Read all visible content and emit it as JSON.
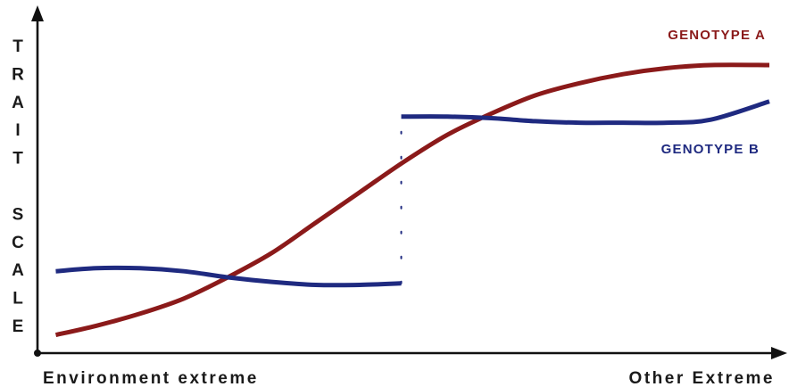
{
  "chart_data": {
    "type": "line",
    "xlabel_left": "Environment extreme",
    "xlabel_right": "Other Extreme",
    "ylabel": "TRAIT SCALE",
    "ylabel_letters": [
      "T",
      "R",
      "A",
      "I",
      "T",
      "",
      "S",
      "C",
      "A",
      "L",
      "E"
    ],
    "xlim": [
      0,
      100
    ],
    "ylim": [
      0,
      100
    ],
    "grid": false,
    "series": [
      {
        "name": "GENOTYPE A",
        "color": "#8b1a1a",
        "x": [
          2.5,
          8,
          14,
          20,
          26,
          32,
          38,
          44,
          50,
          56,
          62,
          68,
          74,
          80,
          86,
          92,
          100
        ],
        "y": [
          6,
          9,
          13,
          18,
          25,
          33,
          43,
          53,
          63,
          72,
          79,
          85,
          89,
          92,
          94,
          95,
          95
        ]
      },
      {
        "name": "GENOTYPE B",
        "color": "#1f2a80",
        "x": [
          2.5,
          8,
          14,
          20,
          26,
          32,
          38,
          44,
          49.7,
          49.7,
          56,
          62,
          68,
          74,
          80,
          86,
          92,
          100
        ],
        "y": [
          27,
          28,
          28,
          27,
          25,
          23.5,
          22.5,
          22.5,
          23,
          78,
          78,
          77.5,
          76.5,
          76,
          76,
          76,
          77,
          83
        ]
      }
    ],
    "threshold": {
      "x": 49.7,
      "y_range": [
        23,
        78
      ],
      "style": "dotted"
    }
  }
}
